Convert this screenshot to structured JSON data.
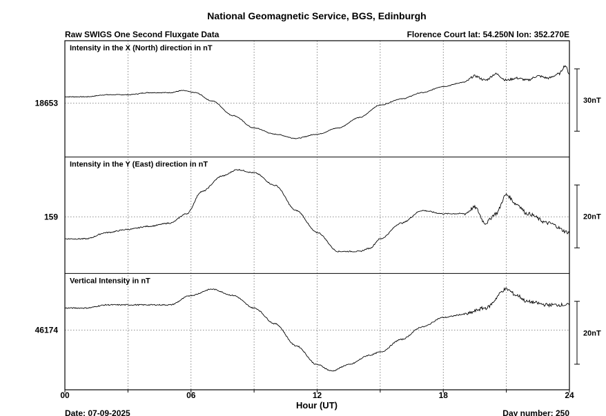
{
  "header": {
    "title": "National Geomagnetic Service, BGS, Edinburgh",
    "left_subtitle": "Raw SWIGS One Second Fluxgate Data",
    "right_subtitle": "Florence Court  lat: 54.250N lon: 352.270E"
  },
  "footer": {
    "date_label": "Date: 07-09-2025",
    "day_label": "Day number:  250"
  },
  "chart_data": {
    "type": "line",
    "xlabel": "Hour (UT)",
    "x_ticks": [
      "00",
      "06",
      "12",
      "18",
      "24"
    ],
    "x_range": [
      0,
      24
    ],
    "grid": true,
    "panels": [
      {
        "label": "Intensity in the X (North) direction in nT",
        "baseline_label": "18653",
        "baseline_value": 18653,
        "y_range": [
          18627,
          18683
        ],
        "scale_bar_label": "30nT",
        "scale_bar_nT": 30,
        "series": [
          {
            "x": 0,
            "y": 18656
          },
          {
            "x": 1,
            "y": 18656
          },
          {
            "x": 2,
            "y": 18657
          },
          {
            "x": 3,
            "y": 18657
          },
          {
            "x": 4,
            "y": 18658
          },
          {
            "x": 5,
            "y": 18658
          },
          {
            "x": 5.6,
            "y": 18659
          },
          {
            "x": 6.2,
            "y": 18658
          },
          {
            "x": 7,
            "y": 18654
          },
          {
            "x": 8,
            "y": 18647
          },
          {
            "x": 9,
            "y": 18641
          },
          {
            "x": 10,
            "y": 18638
          },
          {
            "x": 11,
            "y": 18636
          },
          {
            "x": 12,
            "y": 18638
          },
          {
            "x": 13,
            "y": 18641
          },
          {
            "x": 14,
            "y": 18646
          },
          {
            "x": 15,
            "y": 18652
          },
          {
            "x": 16,
            "y": 18655
          },
          {
            "x": 17,
            "y": 18658
          },
          {
            "x": 18,
            "y": 18661
          },
          {
            "x": 19,
            "y": 18663
          },
          {
            "x": 19.5,
            "y": 18666
          },
          {
            "x": 20,
            "y": 18664
          },
          {
            "x": 20.5,
            "y": 18667
          },
          {
            "x": 21,
            "y": 18664
          },
          {
            "x": 21.5,
            "y": 18665
          },
          {
            "x": 22,
            "y": 18664
          },
          {
            "x": 22.5,
            "y": 18666
          },
          {
            "x": 23,
            "y": 18665
          },
          {
            "x": 23.5,
            "y": 18667
          },
          {
            "x": 23.8,
            "y": 18671
          },
          {
            "x": 24,
            "y": 18667
          }
        ]
      },
      {
        "label": "Intensity in the Y (East) direction in nT",
        "baseline_label": "159",
        "baseline_value": 159,
        "y_range": [
          141,
          178
        ],
        "scale_bar_label": "20nT",
        "scale_bar_nT": 20,
        "series": [
          {
            "x": 0,
            "y": 152
          },
          {
            "x": 1,
            "y": 152
          },
          {
            "x": 2,
            "y": 154
          },
          {
            "x": 3,
            "y": 155
          },
          {
            "x": 4,
            "y": 156
          },
          {
            "x": 5,
            "y": 157
          },
          {
            "x": 5.8,
            "y": 160
          },
          {
            "x": 6.5,
            "y": 167
          },
          {
            "x": 7.5,
            "y": 172
          },
          {
            "x": 8.2,
            "y": 174
          },
          {
            "x": 9,
            "y": 173
          },
          {
            "x": 10,
            "y": 169
          },
          {
            "x": 11,
            "y": 161
          },
          {
            "x": 12,
            "y": 154
          },
          {
            "x": 13,
            "y": 148
          },
          {
            "x": 14,
            "y": 148
          },
          {
            "x": 14.5,
            "y": 149
          },
          {
            "x": 15,
            "y": 152
          },
          {
            "x": 16,
            "y": 157
          },
          {
            "x": 17,
            "y": 161
          },
          {
            "x": 18,
            "y": 160
          },
          {
            "x": 19,
            "y": 160
          },
          {
            "x": 19.5,
            "y": 162
          },
          {
            "x": 20,
            "y": 157
          },
          {
            "x": 20.5,
            "y": 160
          },
          {
            "x": 21,
            "y": 166
          },
          {
            "x": 21.5,
            "y": 163
          },
          {
            "x": 22,
            "y": 160
          },
          {
            "x": 23,
            "y": 157
          },
          {
            "x": 24,
            "y": 154
          }
        ]
      },
      {
        "label": "Vertical Intensity in nT",
        "baseline_label": "46174",
        "baseline_value": 46174,
        "y_range": [
          46155,
          46192
        ],
        "scale_bar_label": "20nT",
        "scale_bar_nT": 20,
        "series": [
          {
            "x": 0,
            "y": 46181
          },
          {
            "x": 1,
            "y": 46181
          },
          {
            "x": 2,
            "y": 46182
          },
          {
            "x": 3,
            "y": 46182
          },
          {
            "x": 4,
            "y": 46182
          },
          {
            "x": 5,
            "y": 46182
          },
          {
            "x": 6,
            "y": 46185
          },
          {
            "x": 7,
            "y": 46187
          },
          {
            "x": 8,
            "y": 46185
          },
          {
            "x": 9,
            "y": 46181
          },
          {
            "x": 10,
            "y": 46176
          },
          {
            "x": 11,
            "y": 46169
          },
          {
            "x": 12,
            "y": 46163
          },
          {
            "x": 12.7,
            "y": 46161
          },
          {
            "x": 13.5,
            "y": 46163
          },
          {
            "x": 14.5,
            "y": 46166
          },
          {
            "x": 15,
            "y": 46167
          },
          {
            "x": 16,
            "y": 46171
          },
          {
            "x": 17,
            "y": 46175
          },
          {
            "x": 18,
            "y": 46178
          },
          {
            "x": 19,
            "y": 46179
          },
          {
            "x": 20,
            "y": 46181
          },
          {
            "x": 21,
            "y": 46187
          },
          {
            "x": 21.5,
            "y": 46185
          },
          {
            "x": 22,
            "y": 46183
          },
          {
            "x": 23,
            "y": 46182
          },
          {
            "x": 24,
            "y": 46182
          }
        ]
      }
    ]
  }
}
